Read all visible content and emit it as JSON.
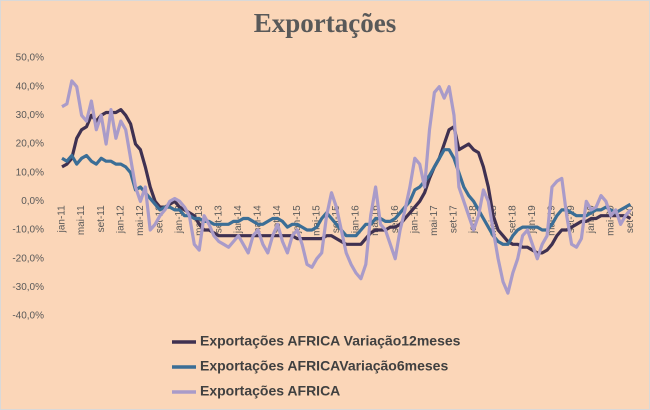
{
  "chart_data": {
    "type": "line",
    "title": "Exportações",
    "categories": [
      "jan-11",
      null,
      null,
      null,
      "mai-11",
      null,
      null,
      null,
      "set-11",
      null,
      null,
      null,
      "jan-12",
      null,
      null,
      null,
      "mai-12",
      null,
      null,
      null,
      "set-12",
      null,
      null,
      null,
      "jan-13",
      null,
      null,
      null,
      "mai-13",
      null,
      null,
      null,
      "set-13",
      null,
      null,
      null,
      "jan-14",
      null,
      null,
      null,
      "mai-14",
      null,
      null,
      null,
      "set-14",
      null,
      null,
      null,
      "jan-15",
      null,
      null,
      null,
      "mai-15",
      null,
      null,
      null,
      "set-15",
      null,
      null,
      null,
      "jan-16",
      null,
      null,
      null,
      "mai-16",
      null,
      null,
      null,
      "set-16",
      null,
      null,
      null,
      "jan-17",
      null,
      null,
      null,
      "mai-17",
      null,
      null,
      null,
      "set-17",
      null,
      null,
      null,
      "jan-18",
      null,
      null,
      null,
      "mai-18",
      null,
      null,
      null,
      "set-18",
      null,
      null,
      null,
      "jan-19",
      null,
      null,
      null,
      "mai-19",
      null,
      null,
      null,
      "set-19",
      null,
      null,
      null,
      "jan-20",
      null,
      null,
      null,
      "mai-20",
      null,
      null,
      null,
      "set-20"
    ],
    "series": [
      {
        "name": "Exportações AFRICA Variação12meses",
        "color": "#3f3151",
        "values": [
          12,
          13,
          15,
          22,
          25,
          26,
          30,
          28,
          30,
          31,
          31,
          31,
          32,
          30,
          27,
          20,
          18,
          12,
          5,
          0,
          -2,
          -2,
          -1,
          0,
          -2,
          -3,
          -4,
          -5,
          -8,
          -10,
          -10,
          -11,
          -12,
          -12,
          -12,
          -12,
          -12,
          -12,
          -12,
          -12,
          -12,
          -12,
          -12,
          -12,
          -12,
          -12,
          -12,
          -12,
          -13,
          -13,
          -13,
          -13,
          -13,
          -13,
          -12,
          -12,
          -13,
          -14,
          -15,
          -15,
          -15,
          -15,
          -13,
          -11,
          -10,
          -10,
          -10,
          -9,
          -9,
          -8,
          -6,
          -4,
          -2,
          0,
          3,
          8,
          12,
          15,
          20,
          25,
          26,
          18,
          19,
          20,
          18,
          17,
          12,
          5,
          -5,
          -10,
          -12,
          -14,
          -15,
          -15,
          -16,
          -16,
          -17,
          -18,
          -18,
          -17,
          -15,
          -12,
          -10,
          -10,
          -9,
          -8,
          -7,
          -7,
          -6,
          -6,
          -5,
          -5,
          -5,
          -5,
          -5,
          -5,
          -6
        ]
      },
      {
        "name": "Exportações AFRICAVariação6meses",
        "color": "#3b6e96",
        "values": [
          15,
          14,
          16,
          13,
          15,
          16,
          14,
          13,
          15,
          14,
          14,
          13,
          13,
          12,
          10,
          4,
          5,
          3,
          1,
          -1,
          -3,
          -2,
          -2,
          -3,
          -3,
          -5,
          -5,
          -6,
          -6,
          -7,
          -7,
          -8,
          -8,
          -8,
          -8,
          -7,
          -7,
          -6,
          -6,
          -7,
          -8,
          -8,
          -7,
          -6,
          -6,
          -7,
          -9,
          -8,
          -8,
          -9,
          -10,
          -10,
          -9,
          -6,
          -4,
          -6,
          -8,
          -10,
          -12,
          -12,
          -12,
          -10,
          -8,
          -8,
          -6,
          -6,
          -7,
          -7,
          -6,
          -4,
          -2,
          0,
          4,
          5,
          7,
          9,
          12,
          15,
          18,
          18,
          15,
          10,
          5,
          2,
          0,
          -3,
          -6,
          -9,
          -12,
          -14,
          -15,
          -15,
          -12,
          -10,
          -9,
          -9,
          -9,
          -9,
          -10,
          -10,
          -8,
          -5,
          -3,
          -3,
          -4,
          -5,
          -5,
          -5,
          -4,
          -3,
          -3,
          -2,
          -3,
          -4,
          -3,
          -2,
          -1
        ]
      },
      {
        "name": "Exportações AFRICA",
        "color": "#a99bc9",
        "values": [
          33,
          34,
          42,
          40,
          30,
          28,
          35,
          25,
          30,
          20,
          32,
          22,
          28,
          25,
          15,
          5,
          0,
          5,
          -10,
          -8,
          -5,
          -3,
          0,
          1,
          0,
          -2,
          -5,
          -15,
          -17,
          -5,
          -8,
          -12,
          -14,
          -15,
          -16,
          -14,
          -12,
          -15,
          -18,
          -12,
          -10,
          -15,
          -18,
          -12,
          -8,
          -14,
          -18,
          -12,
          -10,
          -15,
          -22,
          -23,
          -20,
          -18,
          -5,
          3,
          -2,
          -10,
          -18,
          -22,
          -25,
          -27,
          -22,
          -5,
          5,
          -8,
          -10,
          -15,
          -20,
          -10,
          -3,
          5,
          15,
          13,
          5,
          25,
          38,
          40,
          36,
          40,
          30,
          5,
          0,
          -5,
          -10,
          -5,
          4,
          0,
          -10,
          -20,
          -28,
          -32,
          -25,
          -20,
          -12,
          -10,
          -15,
          -20,
          -15,
          -12,
          5,
          7,
          8,
          -5,
          -15,
          -16,
          -13,
          0,
          -3,
          -2,
          2,
          0,
          -5,
          -3,
          -8,
          -5,
          -3
        ]
      }
    ],
    "ylim": [
      -40,
      50
    ],
    "yticks": [
      {
        "value": -40,
        "label": "-40,0%"
      },
      {
        "value": -30,
        "label": "-30,0%"
      },
      {
        "value": -20,
        "label": "-20,0%"
      },
      {
        "value": -10,
        "label": "-10,0%"
      },
      {
        "value": 0,
        "label": "0,0%"
      },
      {
        "value": 10,
        "label": "10,0%"
      },
      {
        "value": 20,
        "label": "20,0%"
      },
      {
        "value": 30,
        "label": "30,0%"
      },
      {
        "value": 40,
        "label": "40,0%"
      },
      {
        "value": 50,
        "label": "50,0%"
      }
    ],
    "grid": false
  }
}
